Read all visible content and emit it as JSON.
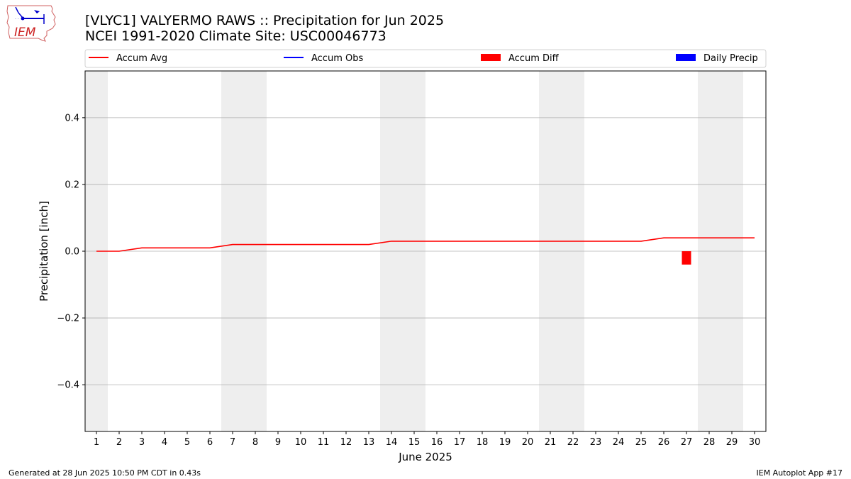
{
  "header": {
    "title_line1": "[VLYC1] VALYERMO RAWS :: Precipitation for Jun 2025",
    "title_line2": "NCEI 1991-2020 Climate Site: USC00046773"
  },
  "logo": {
    "text": "IEM"
  },
  "footer": {
    "generated": "Generated at 28 Jun 2025 10:50 PM CDT in 0.43s",
    "app": "IEM Autoplot App #17"
  },
  "colors": {
    "accum_avg": "#ff0000",
    "accum_obs": "#0000ff",
    "accum_diff": "#ff0000",
    "daily_precip": "#0000ff",
    "weekend_band": "#eeeeee",
    "grid": "#b0b0b0"
  },
  "chart_data": {
    "type": "line",
    "xlabel": "June 2025",
    "ylabel": "Precipitation [inch]",
    "xlim": [
      0.5,
      30.5
    ],
    "ylim": [
      -0.54,
      0.54
    ],
    "x_ticks": [
      1,
      2,
      3,
      4,
      5,
      6,
      7,
      8,
      9,
      10,
      11,
      12,
      13,
      14,
      15,
      16,
      17,
      18,
      19,
      20,
      21,
      22,
      23,
      24,
      25,
      26,
      27,
      28,
      29,
      30
    ],
    "y_ticks": [
      -0.4,
      -0.2,
      0.0,
      0.2,
      0.4
    ],
    "y_tick_labels": [
      "−0.4",
      "−0.2",
      "0.0",
      "0.2",
      "0.4"
    ],
    "grid": "horizontal",
    "legend_position": "top, above plot",
    "legend": [
      {
        "label": "Accum Avg",
        "kind": "line",
        "color": "#ff0000"
      },
      {
        "label": "Accum Obs",
        "kind": "line",
        "color": "#0000ff"
      },
      {
        "label": "Accum Diff",
        "kind": "bar",
        "color": "#ff0000"
      },
      {
        "label": "Daily Precip",
        "kind": "bar",
        "color": "#0000ff"
      }
    ],
    "weekend_days": [
      1,
      7,
      8,
      14,
      15,
      21,
      22,
      28,
      29
    ],
    "series": [
      {
        "name": "Accum Avg",
        "type": "line",
        "x": [
          1,
          2,
          3,
          4,
          5,
          6,
          7,
          8,
          9,
          10,
          11,
          12,
          13,
          14,
          15,
          16,
          17,
          18,
          19,
          20,
          21,
          22,
          23,
          24,
          25,
          26,
          27,
          28,
          29,
          30
        ],
        "values": [
          0.0,
          0.0,
          0.01,
          0.01,
          0.01,
          0.01,
          0.02,
          0.02,
          0.02,
          0.02,
          0.02,
          0.02,
          0.02,
          0.03,
          0.03,
          0.03,
          0.03,
          0.03,
          0.03,
          0.03,
          0.03,
          0.03,
          0.03,
          0.03,
          0.03,
          0.04,
          0.04,
          0.04,
          0.04,
          0.04
        ]
      },
      {
        "name": "Accum Diff",
        "type": "bar",
        "x": [
          27
        ],
        "values": [
          -0.04
        ]
      }
    ]
  }
}
